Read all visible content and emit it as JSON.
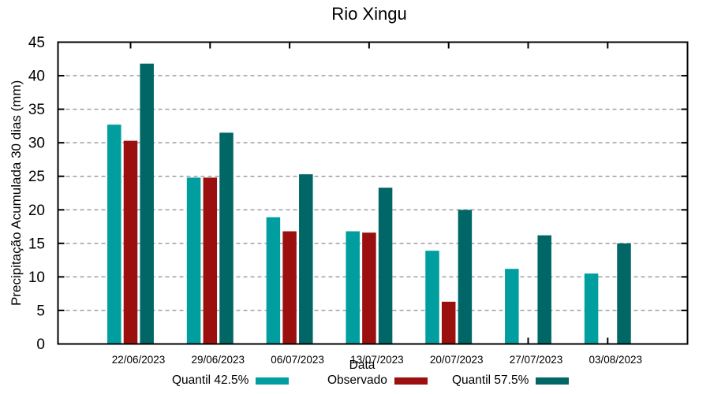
{
  "chart_data": {
    "type": "bar",
    "title": "Rio Xingu",
    "xlabel": "Data",
    "ylabel": "Precipitação Acumulada 30 dias (mm)",
    "ylim": [
      0,
      45
    ],
    "ytick_step": 5,
    "grid": true,
    "grid_style": "dashed",
    "legend_position": "bottom",
    "categories": [
      "22/06/2023",
      "29/06/2023",
      "06/07/2023",
      "13/07/2023",
      "20/07/2023",
      "27/07/2023",
      "03/08/2023"
    ],
    "series": [
      {
        "name": "Quantil 42.5%",
        "color": "#009e9e",
        "values": [
          32.7,
          24.8,
          18.9,
          16.8,
          13.9,
          11.2,
          10.5
        ]
      },
      {
        "name": "Observado",
        "color": "#9b0f0f",
        "values": [
          30.3,
          24.8,
          16.8,
          16.6,
          6.3,
          null,
          null
        ]
      },
      {
        "name": "Quantil 57.5%",
        "color": "#006666",
        "values": [
          41.8,
          31.5,
          25.3,
          23.3,
          20.0,
          16.2,
          15.0
        ]
      }
    ],
    "y_tick_labels": [
      "0",
      "5",
      "10",
      "15",
      "20",
      "25",
      "30",
      "35",
      "40",
      "45"
    ]
  }
}
